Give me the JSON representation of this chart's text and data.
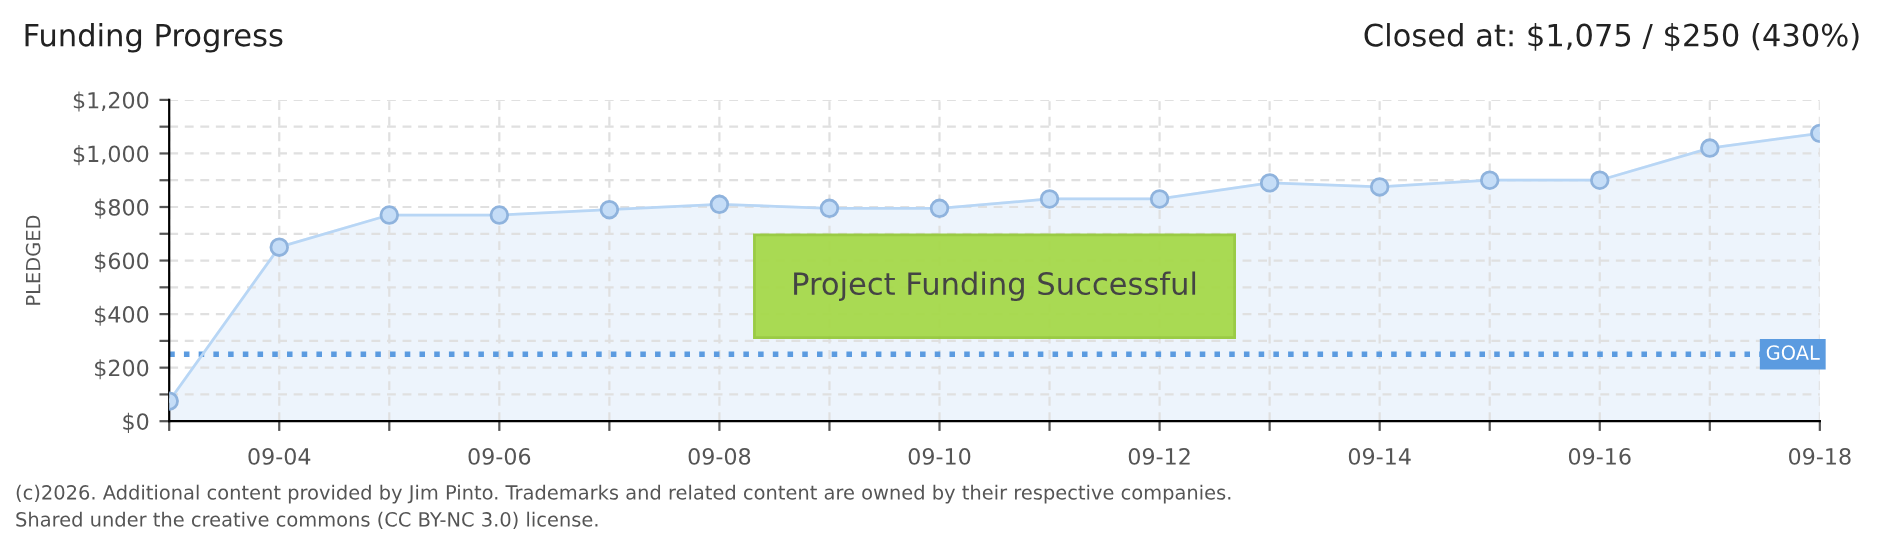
{
  "chart_data": {
    "type": "area",
    "title": "Funding Progress",
    "subtitle": "Closed at: $1,075 / $250 (430%)",
    "ylabel": "PLEDGED",
    "x": [
      "--09-03",
      "--09-04",
      "--09-05",
      "--09-06",
      "--09-07",
      "--09-08",
      "--09-09",
      "--09-10",
      "--09-11",
      "--09-12",
      "--09-13",
      "--09-14",
      "--09-15",
      "--09-16",
      "--09-17",
      "--09-18"
    ],
    "series": [
      {
        "color": "#b8d6f5",
        "values": [
          75,
          650,
          770,
          770,
          790,
          810,
          795,
          795,
          830,
          830,
          890,
          875,
          900,
          900,
          1020,
          1075
        ]
      }
    ],
    "xlim": [
      "--09-03",
      "--09-18"
    ],
    "xticks": [
      {
        "value": "--09-03",
        "label": null
      },
      {
        "value": "--09-04",
        "label": "09-04"
      },
      {
        "value": "--09-05",
        "label": null
      },
      {
        "value": "--09-06",
        "label": "09-06"
      },
      {
        "value": "--09-07",
        "label": null
      },
      {
        "value": "--09-08",
        "label": "09-08"
      },
      {
        "value": "--09-09",
        "label": null
      },
      {
        "value": "--09-10",
        "label": "09-10"
      },
      {
        "value": "--09-11",
        "label": null
      },
      {
        "value": "--09-12",
        "label": "09-12"
      },
      {
        "value": "--09-13",
        "label": null
      },
      {
        "value": "--09-14",
        "label": "09-14"
      },
      {
        "value": "--09-15",
        "label": null
      },
      {
        "value": "--09-16",
        "label": "09-16"
      },
      {
        "value": "--09-17",
        "label": null
      },
      {
        "value": "--09-18",
        "label": "09-18"
      }
    ],
    "ylim": [
      0,
      1200
    ],
    "yticks": [
      {
        "value": 0,
        "label": "$0"
      },
      {
        "value": 100,
        "label": null
      },
      {
        "value": 200,
        "label": "$200"
      },
      {
        "value": 300,
        "label": null
      },
      {
        "value": 400,
        "label": "$400"
      },
      {
        "value": 500,
        "label": null
      },
      {
        "value": 600,
        "label": "$600"
      },
      {
        "value": 700,
        "label": null
      },
      {
        "value": 800,
        "label": "$800"
      },
      {
        "value": 900,
        "label": null
      },
      {
        "value": 1000,
        "label": "$1,000"
      },
      {
        "value": 1100,
        "label": null
      },
      {
        "value": 1200,
        "label": "$1,200"
      }
    ],
    "ref_lines": [
      {
        "axis": "y",
        "value": 250,
        "label": "GOAL",
        "color": "#5b9be0",
        "line_style": "dotted"
      }
    ],
    "grid": true,
    "marker": "circle",
    "legend": false,
    "annotations": [
      "Project Funding Successful",
      "(c)2026. Additional content provided by Jim Pinto. Trademarks and related content are owned by their respective companies.",
      "Shared under the creative commons (CC BY-NC 3.0) license."
    ]
  }
}
